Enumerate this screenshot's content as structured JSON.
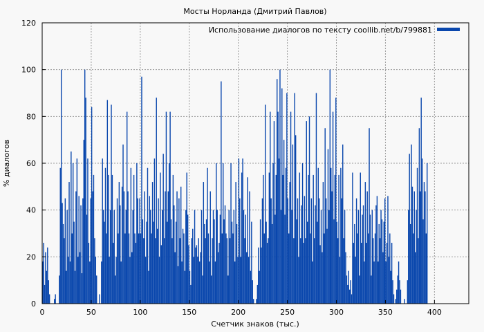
{
  "chart_data": {
    "type": "bar",
    "title": "Мосты Норланда (Дмитрий Павлов)",
    "xlabel": "Счетчик знаков (тыс.)",
    "ylabel": "% диалогов",
    "xlim": [
      0,
      435
    ],
    "ylim": [
      0,
      120
    ],
    "xticks": [
      0,
      50,
      100,
      150,
      200,
      250,
      300,
      350,
      400
    ],
    "yticks": [
      0,
      20,
      40,
      60,
      80,
      100,
      120
    ],
    "grid": true,
    "legend_position": "top-right",
    "series": [
      {
        "name": "Использование диалогов по тексту coollib.net/b/799881",
        "color": "#0a47ad",
        "bin_width": 1,
        "x_start": 0,
        "values": [
          18,
          26,
          8,
          22,
          14,
          24,
          10,
          4,
          0,
          0,
          0,
          0,
          2,
          4,
          0,
          0,
          0,
          12,
          58,
          100,
          43,
          34,
          28,
          45,
          14,
          40,
          20,
          52,
          18,
          65,
          30,
          60,
          35,
          14,
          48,
          62,
          20,
          46,
          22,
          42,
          13,
          45,
          70,
          100,
          88,
          38,
          62,
          26,
          18,
          45,
          84,
          48,
          55,
          28,
          20,
          12,
          0,
          0,
          4,
          0,
          18,
          62,
          40,
          35,
          58,
          30,
          87,
          55,
          20,
          40,
          85,
          55,
          26,
          40,
          12,
          20,
          45,
          30,
          52,
          42,
          18,
          50,
          68,
          48,
          30,
          40,
          82,
          48,
          30,
          20,
          58,
          22,
          40,
          55,
          30,
          26,
          60,
          45,
          30,
          45,
          30,
          97,
          36,
          28,
          48,
          20,
          35,
          58,
          14,
          46,
          40,
          30,
          52,
          35,
          62,
          28,
          88,
          32,
          45,
          20,
          56,
          25,
          40,
          64,
          28,
          48,
          82,
          35,
          48,
          60,
          82,
          36,
          28,
          55,
          42,
          22,
          35,
          48,
          16,
          45,
          28,
          50,
          18,
          32,
          30,
          14,
          40,
          56,
          38,
          25,
          14,
          8,
          28,
          32,
          20,
          40,
          24,
          25,
          20,
          28,
          18,
          22,
          40,
          12,
          52,
          34,
          28,
          36,
          58,
          30,
          18,
          48,
          12,
          28,
          40,
          36,
          18,
          60,
          40,
          22,
          26,
          38,
          95,
          30,
          60,
          36,
          42,
          30,
          28,
          12,
          40,
          28,
          60,
          35,
          30,
          40,
          18,
          52,
          34,
          20,
          62,
          45,
          20,
          56,
          62,
          40,
          28,
          38,
          22,
          54,
          20,
          48,
          14,
          35,
          10,
          2,
          0,
          0,
          2,
          8,
          24,
          14,
          36,
          24,
          45,
          55,
          30,
          85,
          35,
          26,
          28,
          56,
          82,
          45,
          34,
          60,
          78,
          38,
          55,
          96,
          82,
          62,
          100,
          40,
          92,
          55,
          70,
          38,
          58,
          90,
          45,
          30,
          52,
          82,
          40,
          68,
          28,
          90,
          72,
          36,
          45,
          20,
          56,
          28,
          42,
          60,
          26,
          46,
          28,
          78,
          35,
          55,
          80,
          30,
          45,
          18,
          55,
          28,
          42,
          90,
          35,
          58,
          45,
          25,
          40,
          22,
          52,
          30,
          75,
          45,
          32,
          66,
          40,
          100,
          58,
          48,
          82,
          36,
          55,
          88,
          35,
          28,
          55,
          20,
          58,
          45,
          68,
          28,
          40,
          22,
          12,
          8,
          14,
          6,
          10,
          4,
          56,
          26,
          34,
          20,
          45,
          30,
          40,
          12,
          56,
          26,
          38,
          42,
          18,
          52,
          26,
          48,
          30,
          75,
          38,
          12,
          40,
          28,
          18,
          30,
          42,
          46,
          18,
          34,
          28,
          40,
          36,
          22,
          35,
          45,
          18,
          26,
          46,
          20,
          30,
          14,
          26,
          10,
          4,
          0,
          2,
          6,
          12,
          18,
          10,
          6,
          0,
          0,
          0,
          2,
          0,
          0,
          10,
          40,
          64,
          34,
          68,
          50,
          30,
          48,
          22,
          40,
          58,
          28,
          75,
          48,
          88,
          62,
          36,
          52,
          48,
          30,
          60
        ]
      }
    ]
  }
}
